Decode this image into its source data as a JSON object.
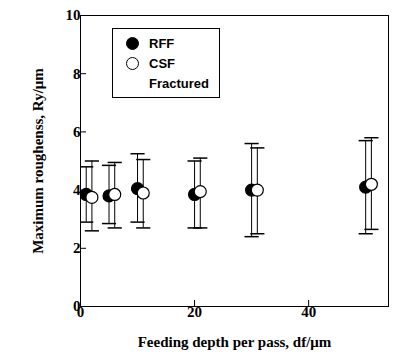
{
  "chart_data": {
    "type": "scatter",
    "x_label": "Feeding depth per pass, df/μm",
    "y_label": "Maximum roughenss, Ry/μm",
    "xlim": [
      0,
      54
    ],
    "xticks": [
      0,
      20,
      40
    ],
    "ylim": [
      0,
      10
    ],
    "yticks": [
      0,
      2,
      4,
      6,
      8,
      10
    ],
    "legend": "upper left",
    "series": [
      {
        "name": "RFF",
        "color": "#000000",
        "marker": "filled",
        "x": [
          1,
          5,
          10,
          20,
          30,
          50
        ],
        "values": [
          3.85,
          3.8,
          4.05,
          3.85,
          4.0,
          4.1
        ],
        "lower": [
          2.9,
          2.85,
          2.9,
          2.7,
          2.4,
          2.5
        ],
        "upper": [
          4.8,
          4.85,
          5.25,
          5.0,
          5.6,
          5.7
        ]
      },
      {
        "name": "CSF",
        "color": "#000000",
        "marker": "open",
        "x": [
          2,
          6,
          11,
          21,
          31,
          51
        ],
        "values": [
          3.75,
          3.85,
          3.9,
          3.95,
          4.0,
          4.2
        ],
        "lower": [
          2.6,
          2.7,
          2.7,
          2.7,
          2.5,
          2.65
        ],
        "upper": [
          5.0,
          4.95,
          5.05,
          5.1,
          5.45,
          5.8
        ]
      },
      {
        "name": "Fractured",
        "color": "#000000",
        "marker": "none",
        "x": [],
        "values": [],
        "lower": [],
        "upper": []
      }
    ]
  }
}
